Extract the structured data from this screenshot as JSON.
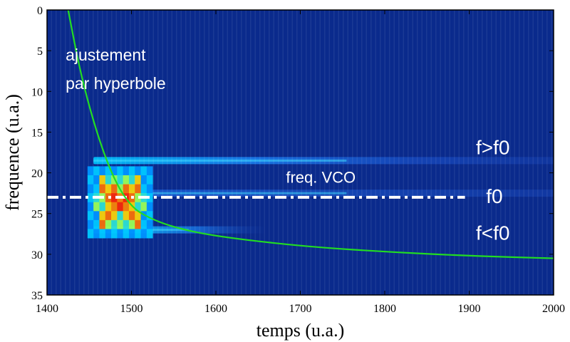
{
  "chart_data": {
    "type": "heatmap",
    "title": "",
    "xlabel": "temps (u.a.)",
    "ylabel": "frequence (u.a.)",
    "xlim": [
      1400,
      2000
    ],
    "ylim": [
      0,
      35
    ],
    "y_inverted": true,
    "xticks": [
      "1400",
      "1500",
      "1600",
      "1700",
      "1800",
      "1900",
      "2000"
    ],
    "yticks": [
      "0",
      "5",
      "10",
      "15",
      "20",
      "25",
      "30",
      "35"
    ],
    "colormap": "jet",
    "background_color": "#0a2a8c",
    "fit_curve": {
      "name": "ajustement par hyperbole",
      "color": "#22dd22",
      "points": [
        [
          1425,
          0
        ],
        [
          1440,
          8
        ],
        [
          1460,
          15.5
        ],
        [
          1480,
          21
        ],
        [
          1500,
          24.2
        ],
        [
          1520,
          25.5
        ],
        [
          1550,
          26.7
        ],
        [
          1600,
          27.8
        ],
        [
          1700,
          29.0
        ],
        [
          1800,
          29.7
        ],
        [
          1900,
          30.2
        ],
        [
          2000,
          30.5
        ]
      ]
    },
    "vco_line": {
      "y": 23,
      "x_range": [
        1400,
        1895
      ],
      "color": "#ffffff",
      "style": "dash-dot"
    },
    "bands": [
      {
        "label": "f>f0",
        "y": 18.5,
        "x_range": [
          1455,
          2000
        ]
      },
      {
        "label": "f0",
        "y": 22.5,
        "x_range": [
          1455,
          2000
        ]
      },
      {
        "label": "f<f0",
        "y": 27,
        "x_range": [
          1455,
          1660
        ]
      }
    ],
    "annotations": [
      {
        "text": "ajustement",
        "x": 1422,
        "y": 5.5
      },
      {
        "text": "par hyperbole",
        "x": 1422,
        "y": 9
      },
      {
        "text": "freq. VCO",
        "x": 1683,
        "y": 20.5
      },
      {
        "text": "f>f0",
        "x": 1908,
        "y": 17
      },
      {
        "text": "f0",
        "x": 1920,
        "y": 23
      },
      {
        "text": "f<f0",
        "x": 1908,
        "y": 27.5
      }
    ]
  }
}
